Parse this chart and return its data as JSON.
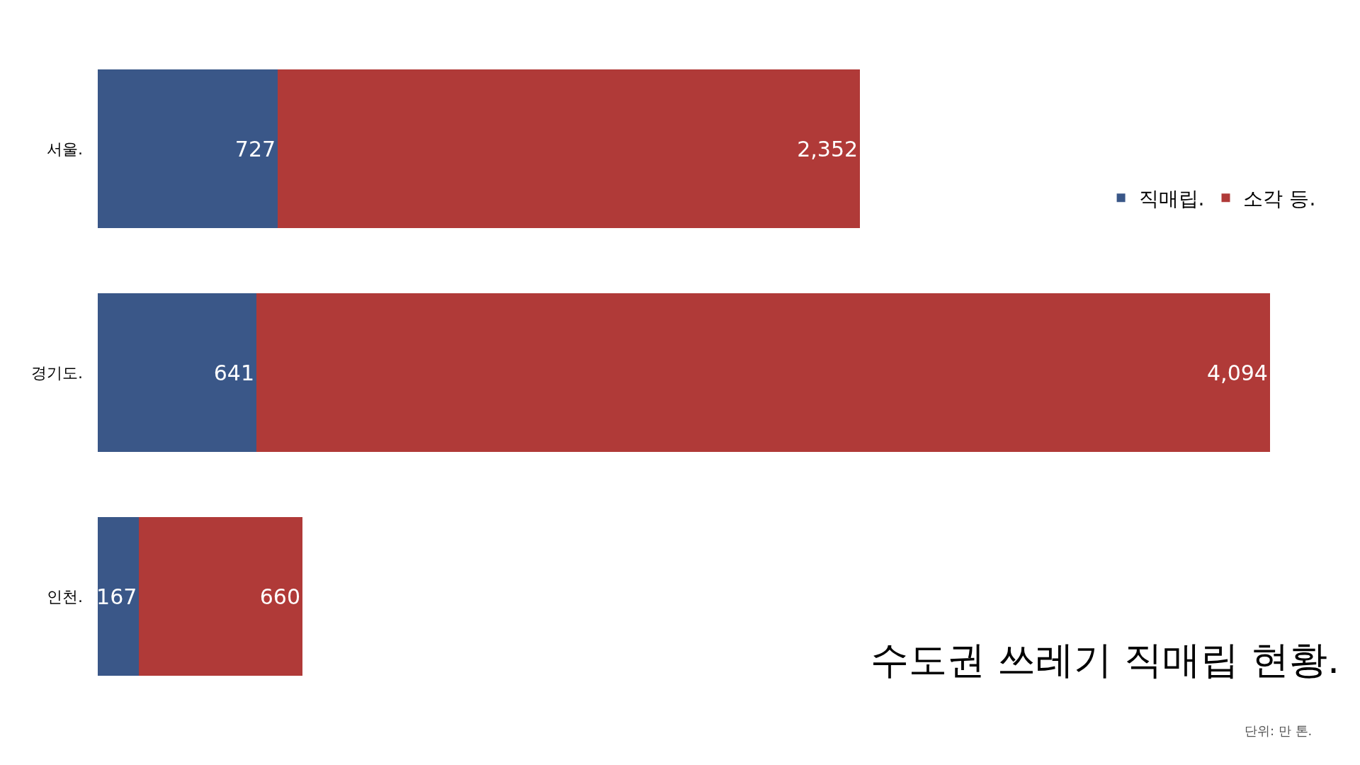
{
  "chart_data": {
    "type": "bar",
    "orientation": "horizontal",
    "stacked": true,
    "title": "수도권 쓰레기 직매립 현황.",
    "annotations": [
      "단위: 만 톤."
    ],
    "categories": [
      "서울.",
      "경기도.",
      "인천."
    ],
    "series": [
      {
        "name": "직매립.",
        "color": "#3a5788",
        "values": [
          727,
          641,
          167
        ],
        "value_labels": [
          "727",
          "641",
          "167"
        ]
      },
      {
        "name": "소각 등.",
        "color": "#b03a38",
        "values": [
          2352,
          4094,
          660
        ],
        "value_labels": [
          "2,352",
          "4,094",
          "660"
        ]
      }
    ],
    "legend": "right",
    "tick_labels": "y"
  }
}
